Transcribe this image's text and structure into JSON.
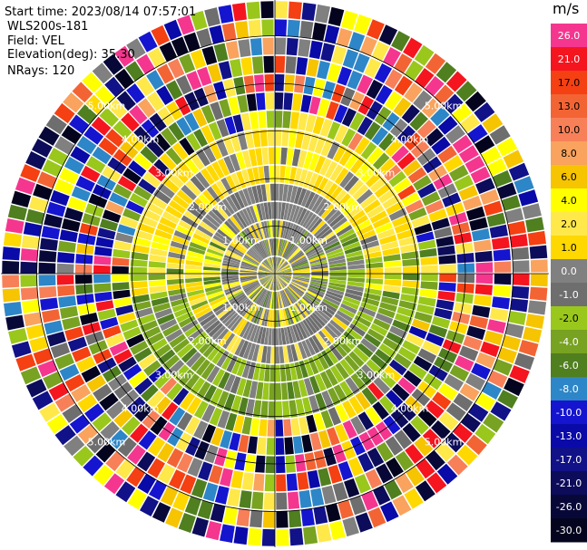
{
  "header": {
    "start_time": "Start time: 2023/08/14 07:57:01",
    "instrument": "WLS200s-181",
    "field": "Field: VEL",
    "elevation": "Elevation(deg): 35.30",
    "nrays": "NRays: 120"
  },
  "colorbar": {
    "unit": "m/s",
    "ticks": [
      "26.0",
      "21.0",
      "17.0",
      "13.0",
      "10.0",
      "8.0",
      "6.0",
      "4.0",
      "2.0",
      "1.0",
      "0.0",
      "-1.0",
      "-2.0",
      "-4.0",
      "-6.0",
      "-8.0",
      "-10.0",
      "-13.0",
      "-17.0",
      "-21.0",
      "-26.0",
      "-30.0"
    ],
    "colors": [
      "#f5368f",
      "#f5151f",
      "#f44012",
      "#f36434",
      "#f78058",
      "#f9a35e",
      "#f6c400",
      "#ffff00",
      "#ffe84a",
      "#ffd800",
      "#808080",
      "#6e6e6e",
      "#9ac71c",
      "#78a221",
      "#507f1f",
      "#2d86c7",
      "#1515d0",
      "#0a0aa8",
      "#111188",
      "#0c0c5a",
      "#080838",
      "#04041e"
    ]
  },
  "chart_data": {
    "type": "heatmap",
    "projection": "polar-ppi",
    "field": "VEL",
    "units": "m/s",
    "n_rays": 120,
    "range_rings_km": [
      "1.00km",
      "2.00km",
      "3.00km",
      "4.00km",
      "5.00km"
    ],
    "dominant_pattern": [
      {
        "range_km": [
          0.0,
          1.0
        ],
        "description": "gray/yellow mixed near-zero velocities"
      },
      {
        "range_km": [
          1.0,
          2.0
        ],
        "description": "north/south gray, east/west yellow and green lobes"
      },
      {
        "range_km": [
          2.0,
          3.0
        ],
        "description": "north half yellow (about +1 to +2 m/s), south half green (about -2 to -4 m/s)"
      },
      {
        "range_km": [
          3.0,
          5.5
        ],
        "description": "noisy multicolor returns spanning -30 to +26 m/s"
      }
    ]
  }
}
